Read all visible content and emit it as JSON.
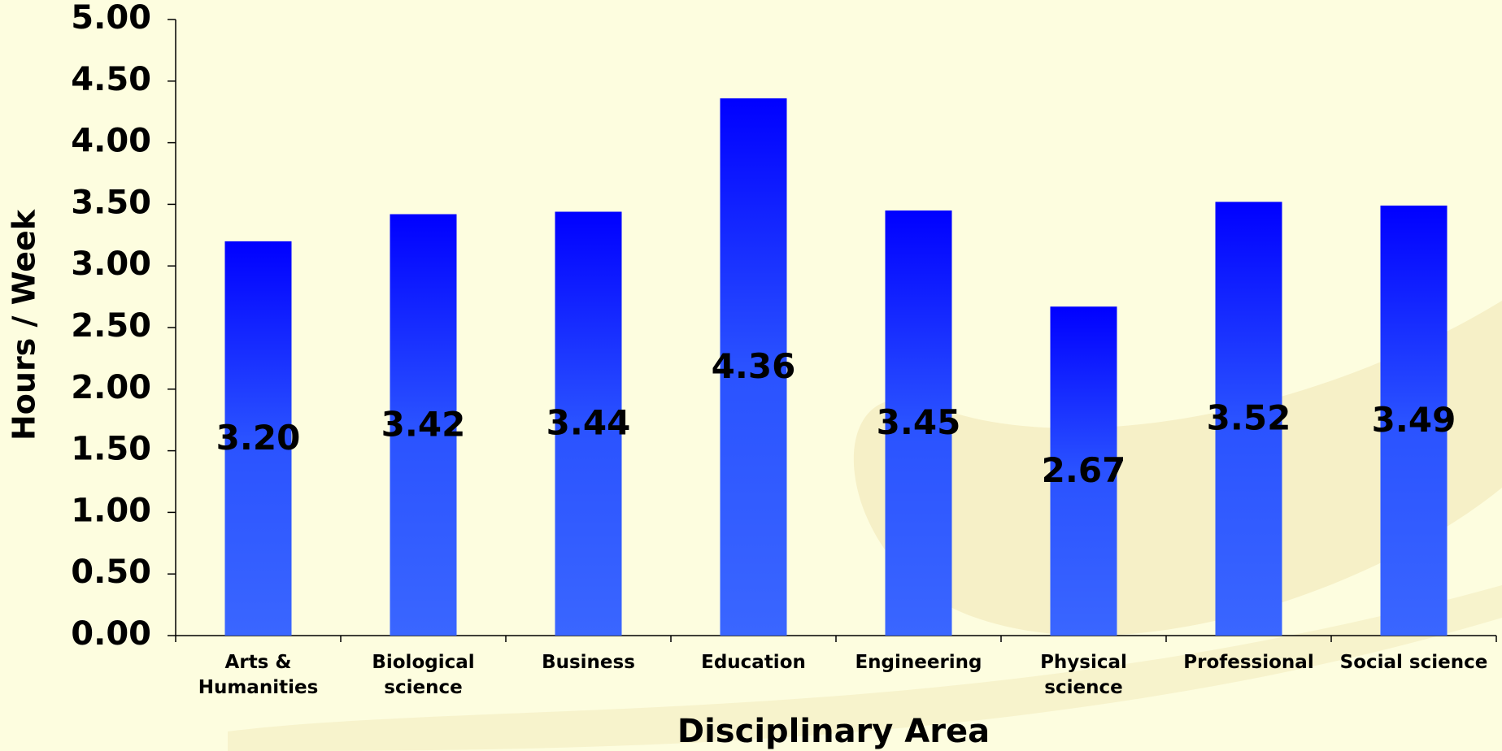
{
  "chart_data": {
    "type": "bar",
    "x_label": "Disciplinary Area",
    "y_label": "Hours / Week",
    "categories": [
      "Arts &\nHumanities",
      "Biological\nscience",
      "Business",
      "Education",
      "Engineering",
      "Physical\nscience",
      "Professional",
      "Social science"
    ],
    "values": [
      3.2,
      3.42,
      3.44,
      4.36,
      3.45,
      2.67,
      3.52,
      3.49
    ],
    "value_labels": [
      "3.20",
      "3.42",
      "3.44",
      "4.36",
      "3.45",
      "2.67",
      "3.52",
      "3.49"
    ],
    "color": "#0000ff",
    "ylim": [
      0,
      5
    ],
    "yticks": [
      {
        "value": 0,
        "label": "0.00"
      },
      {
        "value": 0.5,
        "label": "0.50"
      },
      {
        "value": 1,
        "label": "1.00"
      },
      {
        "value": 1.5,
        "label": "1.50"
      },
      {
        "value": 2,
        "label": "2.00"
      },
      {
        "value": 2.5,
        "label": "2.50"
      },
      {
        "value": 3,
        "label": "3.00"
      },
      {
        "value": 3.5,
        "label": "3.50"
      },
      {
        "value": 4,
        "label": "4.00"
      },
      {
        "value": 4.5,
        "label": "4.50"
      },
      {
        "value": 5,
        "label": "5.00"
      }
    ]
  }
}
